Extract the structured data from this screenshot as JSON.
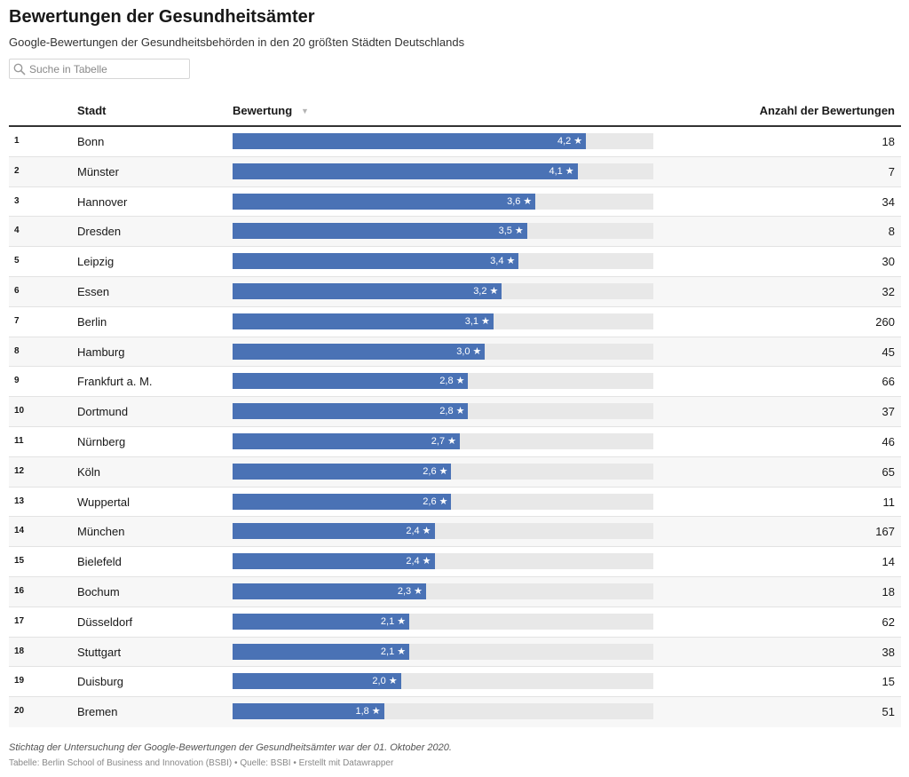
{
  "header": {
    "title": "Bewertungen der Gesundheitsämter",
    "subtitle": "Google-Bewertungen der Gesundheitsbehörden in den 20 größten Städten Deutschlands"
  },
  "search": {
    "placeholder": "Suche in Tabelle"
  },
  "columns": {
    "city": "Stadt",
    "rating": "Bewertung",
    "count": "Anzahl der Bewertungen"
  },
  "colors": {
    "bar": "#4a72b5",
    "bar_bg": "#e8e8e8"
  },
  "star": "★",
  "chart_data": {
    "type": "table",
    "rating_scale_max": 5,
    "rows": [
      {
        "rank": "1",
        "city": "Bonn",
        "rating": 4.2,
        "rating_label": "4,2",
        "count": "18"
      },
      {
        "rank": "2",
        "city": "Münster",
        "rating": 4.1,
        "rating_label": "4,1",
        "count": "7"
      },
      {
        "rank": "3",
        "city": "Hannover",
        "rating": 3.6,
        "rating_label": "3,6",
        "count": "34"
      },
      {
        "rank": "4",
        "city": "Dresden",
        "rating": 3.5,
        "rating_label": "3,5",
        "count": "8"
      },
      {
        "rank": "5",
        "city": "Leipzig",
        "rating": 3.4,
        "rating_label": "3,4",
        "count": "30"
      },
      {
        "rank": "6",
        "city": "Essen",
        "rating": 3.2,
        "rating_label": "3,2",
        "count": "32"
      },
      {
        "rank": "7",
        "city": "Berlin",
        "rating": 3.1,
        "rating_label": "3,1",
        "count": "260"
      },
      {
        "rank": "8",
        "city": "Hamburg",
        "rating": 3.0,
        "rating_label": "3,0",
        "count": "45"
      },
      {
        "rank": "9",
        "city": "Frankfurt a. M.",
        "rating": 2.8,
        "rating_label": "2,8",
        "count": "66"
      },
      {
        "rank": "10",
        "city": "Dortmund",
        "rating": 2.8,
        "rating_label": "2,8",
        "count": "37"
      },
      {
        "rank": "11",
        "city": "Nürnberg",
        "rating": 2.7,
        "rating_label": "2,7",
        "count": "46"
      },
      {
        "rank": "12",
        "city": "Köln",
        "rating": 2.6,
        "rating_label": "2,6",
        "count": "65"
      },
      {
        "rank": "13",
        "city": "Wuppertal",
        "rating": 2.6,
        "rating_label": "2,6",
        "count": "11"
      },
      {
        "rank": "14",
        "city": "München",
        "rating": 2.4,
        "rating_label": "2,4",
        "count": "167"
      },
      {
        "rank": "15",
        "city": "Bielefeld",
        "rating": 2.4,
        "rating_label": "2,4",
        "count": "14"
      },
      {
        "rank": "16",
        "city": "Bochum",
        "rating": 2.3,
        "rating_label": "2,3",
        "count": "18"
      },
      {
        "rank": "17",
        "city": "Düsseldorf",
        "rating": 2.1,
        "rating_label": "2,1",
        "count": "62"
      },
      {
        "rank": "18",
        "city": "Stuttgart",
        "rating": 2.1,
        "rating_label": "2,1",
        "count": "38"
      },
      {
        "rank": "19",
        "city": "Duisburg",
        "rating": 2.0,
        "rating_label": "2,0",
        "count": "15"
      },
      {
        "rank": "20",
        "city": "Bremen",
        "rating": 1.8,
        "rating_label": "1,8",
        "count": "51"
      }
    ]
  },
  "footer": {
    "note": "Stichtag der Untersuchung der Google-Bewertungen der Gesundheitsämter war der 01. Oktober 2020.",
    "source": "Tabelle: Berlin School of Business and Innovation (BSBI) • Quelle: BSBI • Erstellt mit Datawrapper"
  }
}
